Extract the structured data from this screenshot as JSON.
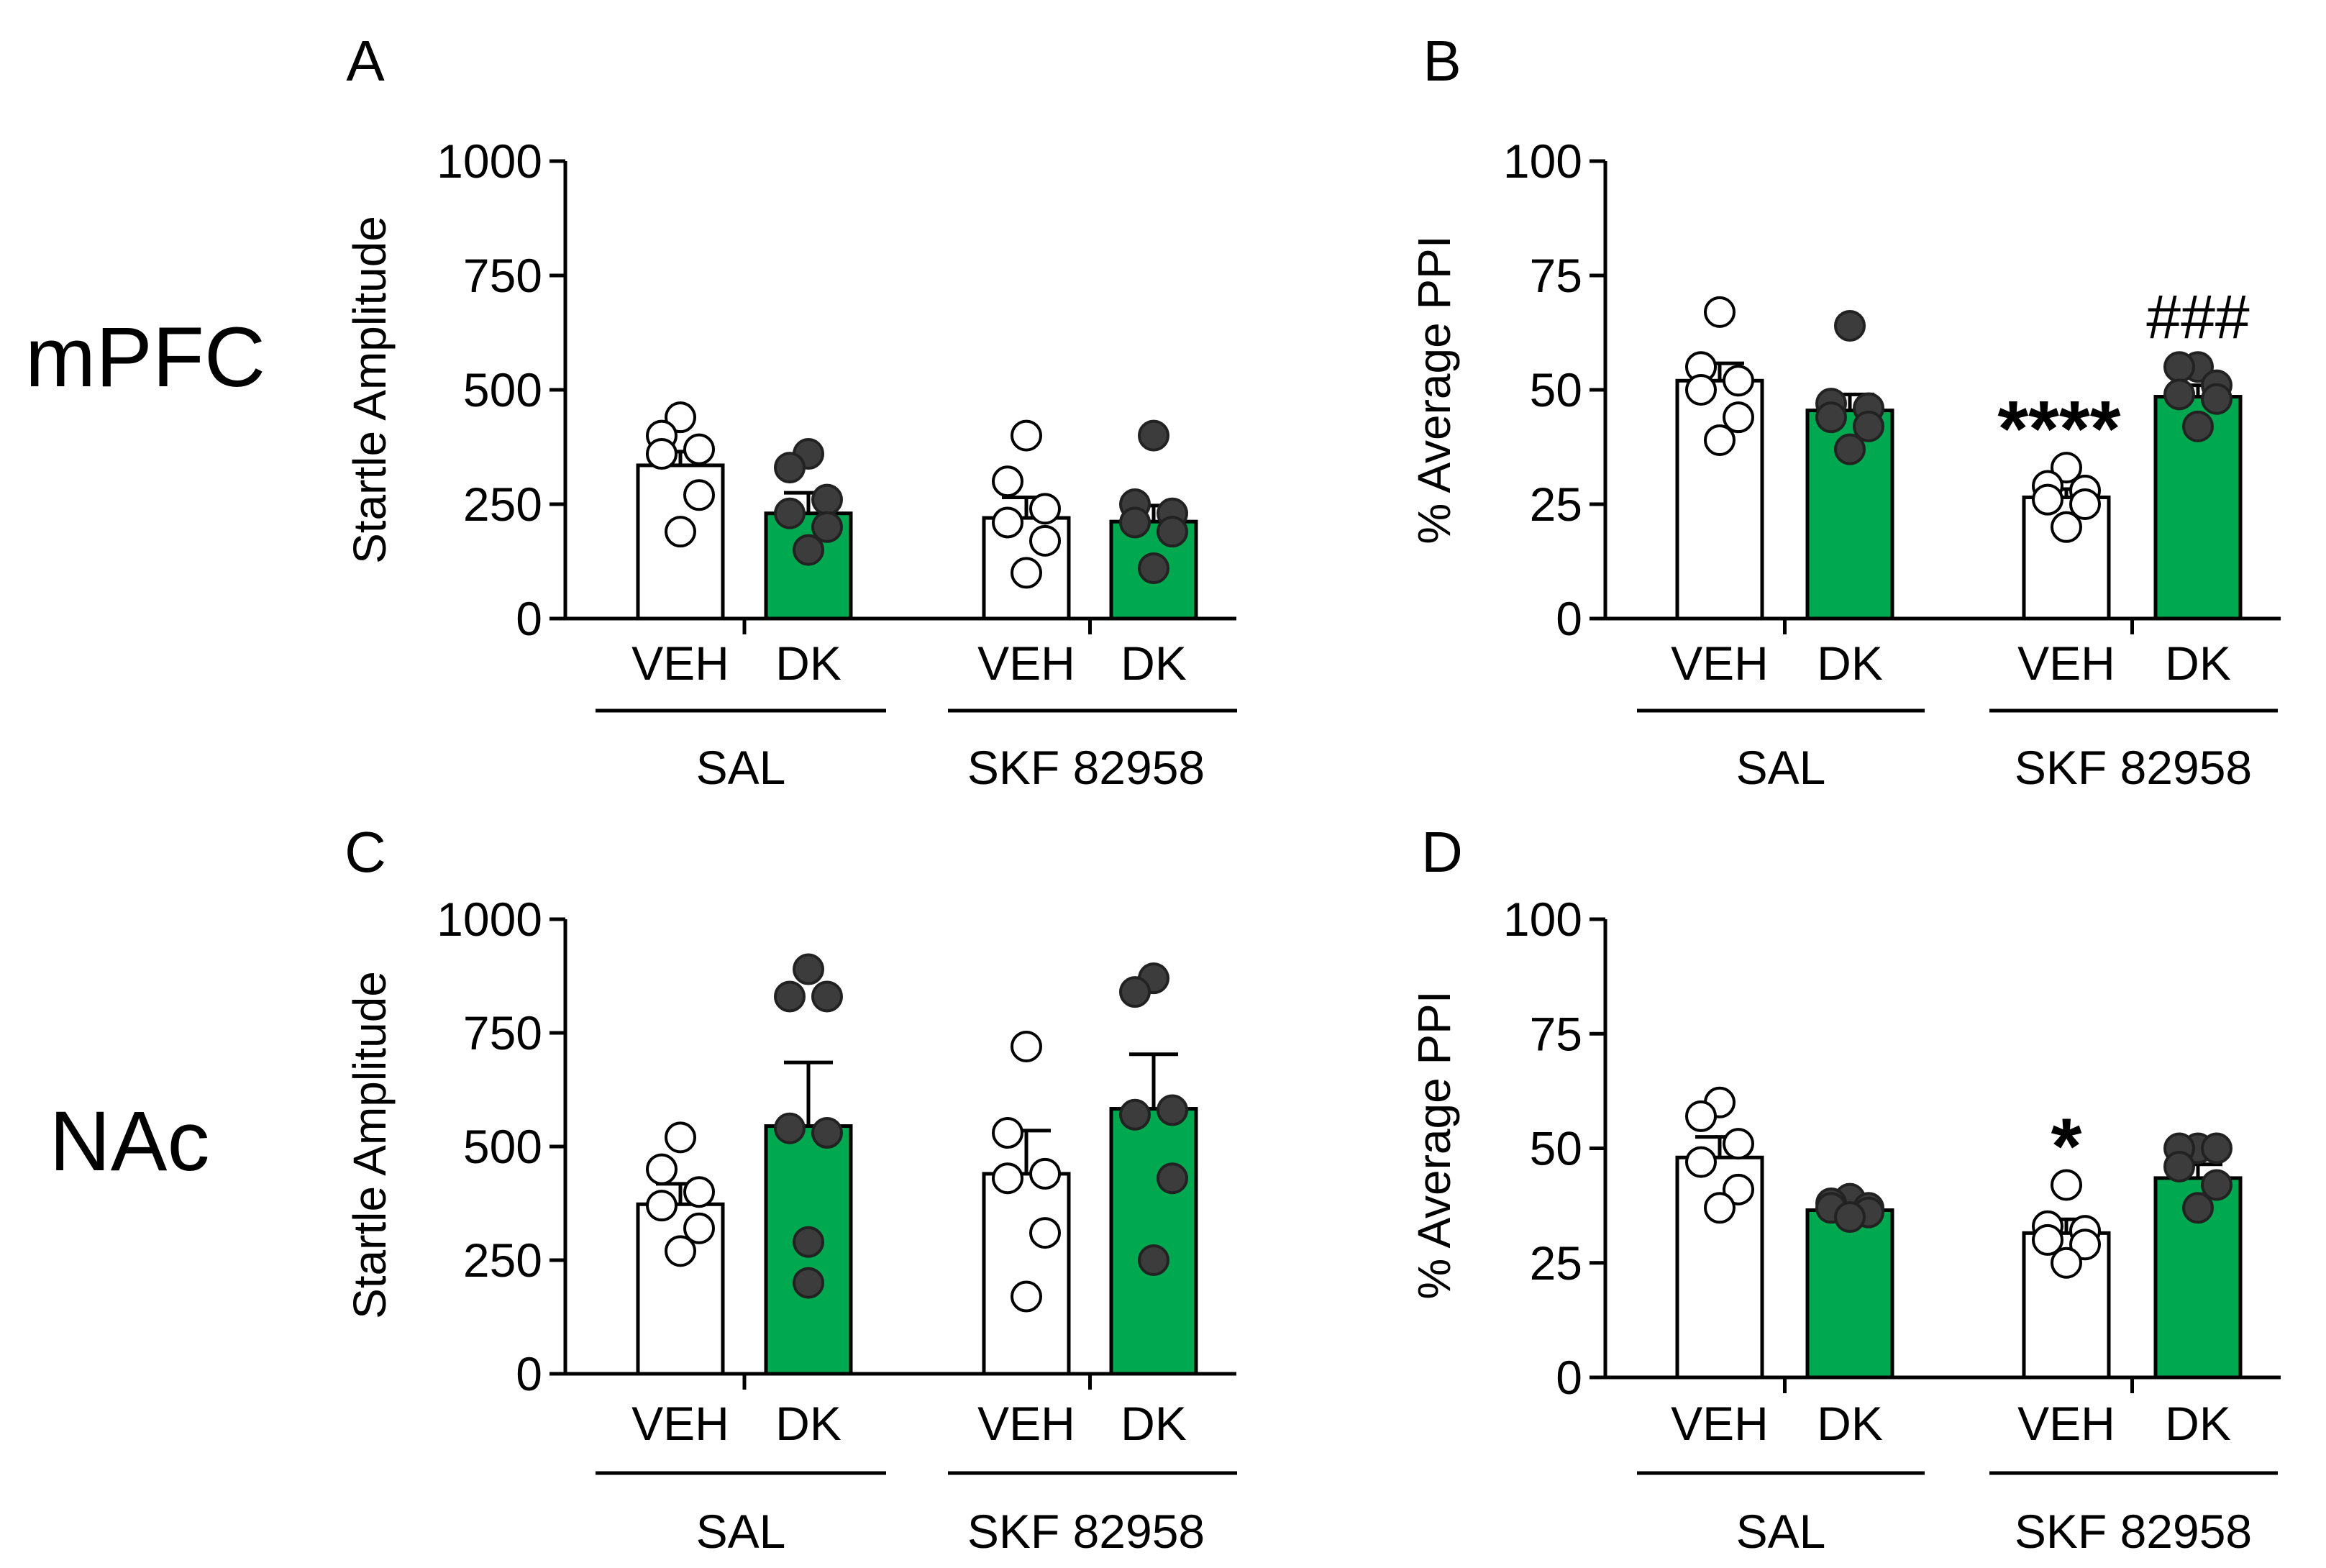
{
  "figure": {
    "row_labels": [
      "mPFC",
      "NAc"
    ],
    "colors": {
      "veh_fill": "#ffffff",
      "dk_fill": "#00a84f",
      "veh_marker_fill": "#ffffff",
      "dk_marker_fill": "#3c3c3c",
      "stroke": "#000000"
    }
  },
  "chart_data": [
    {
      "panel": "A",
      "row": "mPFC",
      "type": "bar",
      "ylabel": "Startle Amplitude",
      "ylim": [
        0,
        1000
      ],
      "yticks": [
        0,
        250,
        500,
        750,
        1000
      ],
      "categories": [
        "VEH",
        "DK",
        "VEH",
        "DK"
      ],
      "groups": [
        {
          "label": "SAL",
          "bars": [
            0,
            1
          ]
        },
        {
          "label": "SKF 82958",
          "bars": [
            2,
            3
          ]
        }
      ],
      "fills": [
        "veh",
        "dk",
        "veh",
        "dk"
      ],
      "values": [
        335,
        230,
        220,
        212
      ],
      "errors": [
        30,
        45,
        45,
        35
      ],
      "points": [
        [
          440,
          400,
          370,
          360,
          270,
          190
        ],
        [
          360,
          330,
          260,
          230,
          200,
          150
        ],
        [
          400,
          300,
          240,
          210,
          170,
          100
        ],
        [
          400,
          250,
          230,
          210,
          190,
          110
        ]
      ],
      "annotations": []
    },
    {
      "panel": "B",
      "row": "mPFC",
      "type": "bar",
      "ylabel": "% Average PPI",
      "ylim": [
        0,
        100
      ],
      "yticks": [
        0,
        25,
        50,
        75,
        100
      ],
      "categories": [
        "VEH",
        "DK",
        "VEH",
        "DK"
      ],
      "groups": [
        {
          "label": "SAL",
          "bars": [
            0,
            1
          ]
        },
        {
          "label": "SKF 82958",
          "bars": [
            2,
            3
          ]
        }
      ],
      "fills": [
        "veh",
        "dk",
        "veh",
        "dk"
      ],
      "values": [
        52,
        45.5,
        26.5,
        48.5
      ],
      "errors": [
        3.8,
        3.5,
        1.8,
        2.5
      ],
      "points": [
        [
          67,
          55,
          52,
          50,
          44,
          39
        ],
        [
          64,
          47,
          46,
          44,
          42,
          37
        ],
        [
          33,
          29,
          28,
          26,
          25,
          20
        ],
        [
          55,
          55,
          51,
          49,
          48,
          42
        ]
      ],
      "annotations": [
        {
          "bar": 2,
          "text": "****"
        },
        {
          "bar": 3,
          "text": "###"
        }
      ]
    },
    {
      "panel": "C",
      "row": "NAc",
      "type": "bar",
      "ylabel": "Startle Amplitude",
      "ylim": [
        0,
        1000
      ],
      "yticks": [
        0,
        250,
        500,
        750,
        1000
      ],
      "categories": [
        "VEH",
        "DK",
        "VEH",
        "DK"
      ],
      "groups": [
        {
          "label": "SAL",
          "bars": [
            0,
            1
          ]
        },
        {
          "label": "SKF 82958",
          "bars": [
            2,
            3
          ]
        }
      ],
      "fills": [
        "veh",
        "dk",
        "veh",
        "dk"
      ],
      "values": [
        373,
        545,
        440,
        583
      ],
      "errors": [
        45,
        140,
        95,
        120
      ],
      "points": [
        [
          520,
          450,
          400,
          370,
          320,
          270
        ],
        [
          890,
          830,
          830,
          540,
          530,
          290,
          200
        ],
        [
          720,
          530,
          440,
          430,
          310,
          170
        ],
        [
          870,
          840,
          580,
          570,
          430,
          250
        ]
      ],
      "annotations": []
    },
    {
      "panel": "D",
      "row": "NAc",
      "type": "bar",
      "ylabel": "% Average PPI",
      "ylim": [
        0,
        100
      ],
      "yticks": [
        0,
        25,
        50,
        75,
        100
      ],
      "categories": [
        "VEH",
        "DK",
        "VEH",
        "DK"
      ],
      "groups": [
        {
          "label": "SAL",
          "bars": [
            0,
            1
          ]
        },
        {
          "label": "SKF 82958",
          "bars": [
            2,
            3
          ]
        }
      ],
      "fills": [
        "veh",
        "dk",
        "veh",
        "dk"
      ],
      "values": [
        48,
        36.5,
        31.5,
        43.5
      ],
      "errors": [
        4.5,
        1.5,
        3,
        3
      ],
      "points": [
        [
          60,
          57,
          51,
          47,
          41,
          37
        ],
        [
          39,
          38,
          37,
          37,
          36,
          35
        ],
        [
          42,
          33,
          32,
          30,
          29,
          25
        ],
        [
          50,
          50,
          50,
          46,
          42,
          37
        ]
      ],
      "annotations": [
        {
          "bar": 2,
          "text": "*"
        }
      ]
    }
  ]
}
